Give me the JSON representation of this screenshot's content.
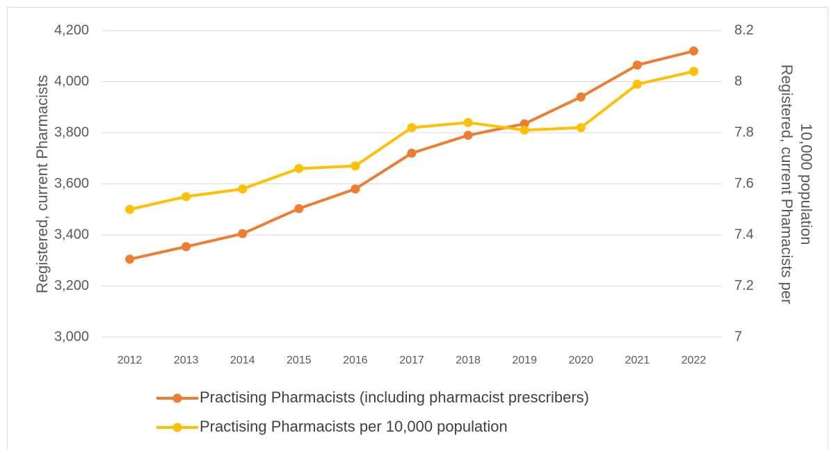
{
  "chart_data": {
    "type": "line",
    "categories": [
      "2012",
      "2013",
      "2014",
      "2015",
      "2016",
      "2017",
      "2018",
      "2019",
      "2020",
      "2021",
      "2022"
    ],
    "series": [
      {
        "name": "Practising Pharmacists (including pharmacist prescribers)",
        "color": "#ed7d31",
        "axis": "y",
        "values": [
          3305,
          3354,
          3405,
          3503,
          3580,
          3720,
          3790,
          3835,
          3940,
          4065,
          4120
        ]
      },
      {
        "name": "Practising Pharmacists per 10,000 population",
        "color": "#ffc000",
        "axis": "y2",
        "values": [
          7.5,
          7.55,
          7.58,
          7.66,
          7.67,
          7.82,
          7.84,
          7.81,
          7.82,
          7.99,
          8.04
        ]
      }
    ],
    "ylabel": "Registered, current Pharmacists",
    "y2label": [
      "Registered, current Phamacists per",
      "10,000 population"
    ],
    "ylim": [
      3000,
      4200
    ],
    "yticks": [
      {
        "value": 3000,
        "label": "3,000"
      },
      {
        "value": 3200,
        "label": "3,200"
      },
      {
        "value": 3400,
        "label": "3,400"
      },
      {
        "value": 3600,
        "label": "3,600"
      },
      {
        "value": 3800,
        "label": "3,800"
      },
      {
        "value": 4000,
        "label": "4,000"
      },
      {
        "value": 4200,
        "label": "4,200"
      }
    ],
    "y2lim": [
      7,
      8.2
    ],
    "y2ticks": [
      7,
      7.2,
      7.4,
      7.6,
      7.8,
      8,
      8.2
    ],
    "grid": true,
    "legend": "bottom"
  }
}
